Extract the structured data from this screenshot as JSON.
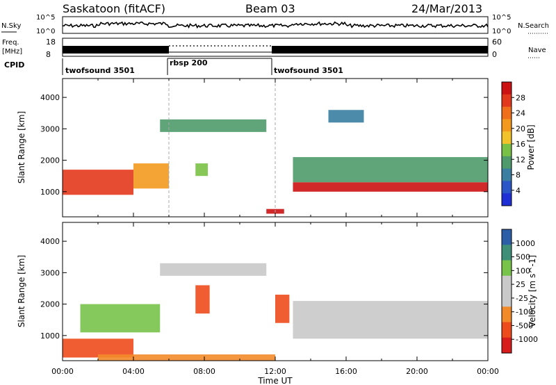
{
  "header": {
    "station": "Saskatoon (fitACF)",
    "beam": "Beam 03",
    "date": "24/Mar/2013"
  },
  "summary": {
    "nsky_label": "N.Sky",
    "nsky_ticks": [
      "10^5",
      "10^0"
    ],
    "nsearch_label": "N.Search",
    "nsearch_ticks": [
      "10^5",
      "10^0"
    ],
    "freq_label": "Freq.",
    "freq_unit": "[MHz]",
    "freq_ticks": [
      "18",
      "8"
    ],
    "nave_label": "Nave",
    "nave_ticks": [
      "60",
      "0"
    ],
    "cpid_label": "CPID",
    "cpid_segments": [
      {
        "name": "twofsound 3501",
        "start": 0,
        "end": 6
      },
      {
        "name": "rbsp 200",
        "start": 6,
        "end": 12
      },
      {
        "name": "twofsound 3501",
        "start": 12,
        "end": 24
      }
    ]
  },
  "colors": {
    "power_scale": [
      "#1f2fd6",
      "#2a56c8",
      "#3a7ea2",
      "#4f9a6a",
      "#79c146",
      "#f2c22a",
      "#f39a1e",
      "#ef6f1a",
      "#e2381b",
      "#cc1212"
    ],
    "velocity_scale": [
      "#d81b1b",
      "#ee4b1d",
      "#f38a2a",
      "#c9c9c9",
      "#c9c9c9",
      "#78c34a",
      "#3f8f78",
      "#2c5ea8"
    ]
  },
  "chart_data": [
    {
      "type": "heatmap",
      "title": "Power",
      "xlabel": "Time UT",
      "ylabel": "Slant Range [km]",
      "x_range": [
        "00:00",
        "24:00"
      ],
      "y_range": [
        200,
        4600
      ],
      "x_ticks": [
        "00:00",
        "04:00",
        "08:00",
        "12:00",
        "16:00",
        "20:00",
        "00:00"
      ],
      "y_ticks": [
        "1000",
        "2000",
        "3000",
        "4000"
      ],
      "colorbar_label": "Power [dB]",
      "colorbar_ticks": [
        "4",
        "8",
        "12",
        "16",
        "20",
        "24",
        "28"
      ],
      "color_range": [
        0,
        30
      ],
      "mode_change_lines_hours": [
        6,
        12
      ],
      "echo_bands": [
        {
          "t": [
            0,
            4
          ],
          "range_km": [
            900,
            1700
          ],
          "value": 26
        },
        {
          "t": [
            4,
            6
          ],
          "range_km": [
            1100,
            1900
          ],
          "value": 18
        },
        {
          "t": [
            5.5,
            11.5
          ],
          "range_km": [
            2900,
            3300
          ],
          "value": 10
        },
        {
          "t": [
            7.5,
            8.2
          ],
          "range_km": [
            1500,
            1900
          ],
          "value": 14
        },
        {
          "t": [
            11.5,
            12.5
          ],
          "range_km": [
            300,
            450
          ],
          "value": 28
        },
        {
          "t": [
            13,
            24
          ],
          "range_km": [
            1000,
            1300
          ],
          "value": 28
        },
        {
          "t": [
            13,
            24
          ],
          "range_km": [
            1300,
            2100
          ],
          "value": 10
        },
        {
          "t": [
            15,
            17
          ],
          "range_km": [
            3200,
            3600
          ],
          "value": 6
        }
      ]
    },
    {
      "type": "heatmap",
      "title": "Velocity",
      "xlabel": "Time UT",
      "ylabel": "Slant Range [km]",
      "x_range": [
        "00:00",
        "24:00"
      ],
      "y_range": [
        200,
        4600
      ],
      "x_ticks": [
        "00:00",
        "04:00",
        "08:00",
        "12:00",
        "16:00",
        "20:00",
        "00:00"
      ],
      "y_ticks": [
        "1000",
        "2000",
        "3000",
        "4000"
      ],
      "colorbar_label": "Velocity [m s^-1]",
      "colorbar_ticks": [
        "1000",
        "500",
        "100",
        "25",
        "-25",
        "-100",
        "-500",
        "-1000"
      ],
      "echo_bands": [
        {
          "t": [
            0,
            4
          ],
          "range_km": [
            300,
            900
          ],
          "value": -300
        },
        {
          "t": [
            1,
            5.5
          ],
          "range_km": [
            1100,
            2000
          ],
          "value": 200
        },
        {
          "t": [
            5.5,
            11.5
          ],
          "range_km": [
            2900,
            3300
          ],
          "value": 0
        },
        {
          "t": [
            7.5,
            8.3
          ],
          "range_km": [
            1700,
            2600
          ],
          "value": -300
        },
        {
          "t": [
            12,
            12.8
          ],
          "range_km": [
            1400,
            2300
          ],
          "value": -400
        },
        {
          "t": [
            13,
            24
          ],
          "range_km": [
            900,
            2100
          ],
          "value": 0
        },
        {
          "t": [
            2,
            12
          ],
          "range_km": [
            200,
            400
          ],
          "value": -150
        }
      ]
    }
  ]
}
